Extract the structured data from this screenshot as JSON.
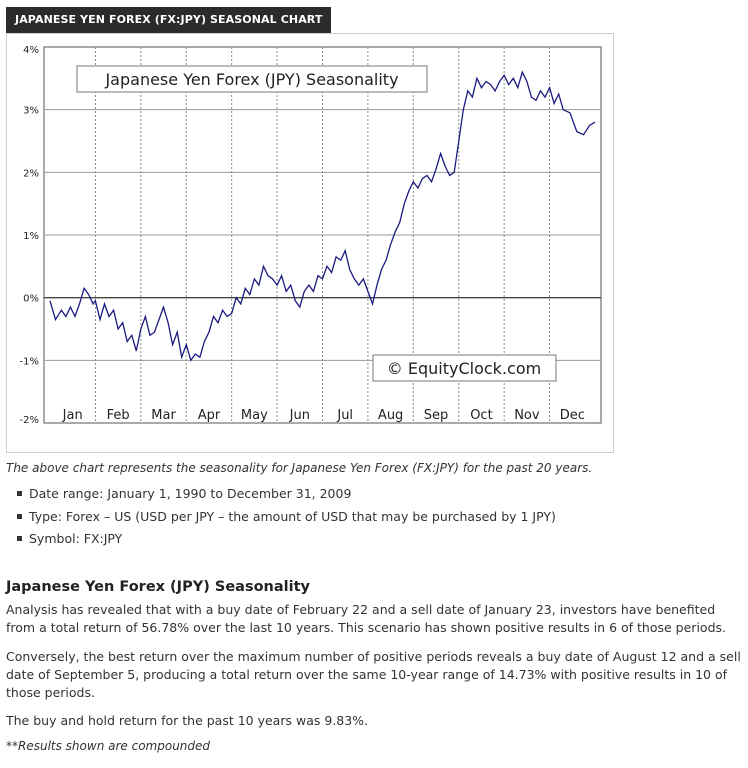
{
  "header": {
    "title": "JAPANESE YEN FOREX (FX:JPY) SEASONAL CHART"
  },
  "chart_data": {
    "type": "line",
    "title": "Japanese Yen Forex (JPY) Seasonality",
    "watermark": "© EquityClock.com",
    "xlabel": "",
    "ylabel": "",
    "ylim": [
      -2,
      4
    ],
    "y_ticks": [
      "4%",
      "3%",
      "2%",
      "1%",
      "0%",
      "-1%",
      "-2%"
    ],
    "x_ticks": [
      "Jan",
      "Feb",
      "Mar",
      "Apr",
      "May",
      "Jun",
      "Jul",
      "Aug",
      "Sep",
      "Oct",
      "Nov",
      "Dec"
    ],
    "grid": "horizontal lines plus dotted monthly dividers",
    "line_color": "#1a1a80",
    "series": [
      {
        "points": [
          [
            0.0,
            -0.05
          ],
          [
            0.12,
            -0.35
          ],
          [
            0.25,
            -0.2
          ],
          [
            0.35,
            -0.3
          ],
          [
            0.45,
            -0.15
          ],
          [
            0.55,
            -0.3
          ],
          [
            0.65,
            -0.1
          ],
          [
            0.75,
            0.15
          ],
          [
            0.85,
            0.05
          ],
          [
            0.95,
            -0.1
          ],
          [
            1.0,
            -0.05
          ],
          [
            1.1,
            -0.35
          ],
          [
            1.2,
            -0.1
          ],
          [
            1.3,
            -0.3
          ],
          [
            1.4,
            -0.2
          ],
          [
            1.5,
            -0.5
          ],
          [
            1.6,
            -0.4
          ],
          [
            1.7,
            -0.7
          ],
          [
            1.8,
            -0.6
          ],
          [
            1.9,
            -0.85
          ],
          [
            2.0,
            -0.5
          ],
          [
            2.1,
            -0.3
          ],
          [
            2.2,
            -0.6
          ],
          [
            2.3,
            -0.55
          ],
          [
            2.4,
            -0.35
          ],
          [
            2.5,
            -0.15
          ],
          [
            2.6,
            -0.4
          ],
          [
            2.7,
            -0.75
          ],
          [
            2.8,
            -0.55
          ],
          [
            2.9,
            -0.95
          ],
          [
            3.0,
            -0.75
          ],
          [
            3.1,
            -1.0
          ],
          [
            3.2,
            -0.9
          ],
          [
            3.3,
            -0.95
          ],
          [
            3.4,
            -0.7
          ],
          [
            3.5,
            -0.55
          ],
          [
            3.6,
            -0.3
          ],
          [
            3.7,
            -0.4
          ],
          [
            3.8,
            -0.2
          ],
          [
            3.9,
            -0.3
          ],
          [
            4.0,
            -0.25
          ],
          [
            4.1,
            0.0
          ],
          [
            4.2,
            -0.1
          ],
          [
            4.3,
            0.15
          ],
          [
            4.4,
            0.05
          ],
          [
            4.5,
            0.3
          ],
          [
            4.6,
            0.2
          ],
          [
            4.7,
            0.5
          ],
          [
            4.8,
            0.35
          ],
          [
            4.9,
            0.3
          ],
          [
            5.0,
            0.2
          ],
          [
            5.1,
            0.35
          ],
          [
            5.2,
            0.1
          ],
          [
            5.3,
            0.2
          ],
          [
            5.4,
            -0.05
          ],
          [
            5.5,
            -0.15
          ],
          [
            5.6,
            0.1
          ],
          [
            5.7,
            0.2
          ],
          [
            5.8,
            0.1
          ],
          [
            5.9,
            0.35
          ],
          [
            6.0,
            0.3
          ],
          [
            6.1,
            0.5
          ],
          [
            6.2,
            0.4
          ],
          [
            6.3,
            0.65
          ],
          [
            6.4,
            0.6
          ],
          [
            6.5,
            0.75
          ],
          [
            6.6,
            0.45
          ],
          [
            6.7,
            0.3
          ],
          [
            6.8,
            0.2
          ],
          [
            6.9,
            0.3
          ],
          [
            7.0,
            0.1
          ],
          [
            7.1,
            -0.1
          ],
          [
            7.2,
            0.2
          ],
          [
            7.3,
            0.45
          ],
          [
            7.4,
            0.6
          ],
          [
            7.5,
            0.85
          ],
          [
            7.6,
            1.05
          ],
          [
            7.7,
            1.2
          ],
          [
            7.8,
            1.5
          ],
          [
            7.9,
            1.7
          ],
          [
            8.0,
            1.85
          ],
          [
            8.1,
            1.75
          ],
          [
            8.2,
            1.9
          ],
          [
            8.3,
            1.95
          ],
          [
            8.4,
            1.85
          ],
          [
            8.5,
            2.05
          ],
          [
            8.6,
            2.3
          ],
          [
            8.7,
            2.1
          ],
          [
            8.8,
            1.95
          ],
          [
            8.9,
            2.0
          ],
          [
            9.0,
            2.5
          ],
          [
            9.1,
            3.0
          ],
          [
            9.2,
            3.3
          ],
          [
            9.3,
            3.2
          ],
          [
            9.4,
            3.5
          ],
          [
            9.5,
            3.35
          ],
          [
            9.6,
            3.45
          ],
          [
            9.7,
            3.4
          ],
          [
            9.8,
            3.3
          ],
          [
            9.9,
            3.45
          ],
          [
            10.0,
            3.55
          ],
          [
            10.1,
            3.4
          ],
          [
            10.2,
            3.5
          ],
          [
            10.3,
            3.35
          ],
          [
            10.4,
            3.6
          ],
          [
            10.5,
            3.45
          ],
          [
            10.6,
            3.2
          ],
          [
            10.7,
            3.15
          ],
          [
            10.8,
            3.3
          ],
          [
            10.9,
            3.2
          ],
          [
            11.0,
            3.35
          ],
          [
            11.1,
            3.1
          ],
          [
            11.2,
            3.25
          ],
          [
            11.3,
            3.0
          ],
          [
            11.45,
            2.95
          ],
          [
            11.6,
            2.65
          ],
          [
            11.75,
            2.6
          ],
          [
            11.88,
            2.75
          ],
          [
            12.0,
            2.8
          ]
        ]
      }
    ]
  },
  "caption": "The above chart represents the seasonality for Japanese Yen Forex (FX:JPY) for the past 20 years.",
  "facts": [
    "Date range: January 1, 1990 to December 31, 2009",
    "Type: Forex – US (USD per JPY – the amount of USD that may be purchased by 1 JPY)",
    "Symbol: FX:JPY"
  ],
  "section": {
    "heading": "Japanese Yen Forex (JPY) Seasonality",
    "paragraph_1": "Analysis has revealed that with a buy date of February 22 and a sell date of January 23, investors have benefited from a total return of 56.78% over the last 10 years. This scenario has shown positive results in 6 of those periods.",
    "paragraph_2": "Conversely, the best return over the maximum number of positive periods reveals a buy date of August 12 and a sell date of September 5, producing a total return over the same 10-year range of 14.73% with positive results in 10 of those periods.",
    "paragraph_3": "The buy and hold return for the past 10 years was 9.83%.",
    "footnote": "**Results shown are compounded"
  }
}
